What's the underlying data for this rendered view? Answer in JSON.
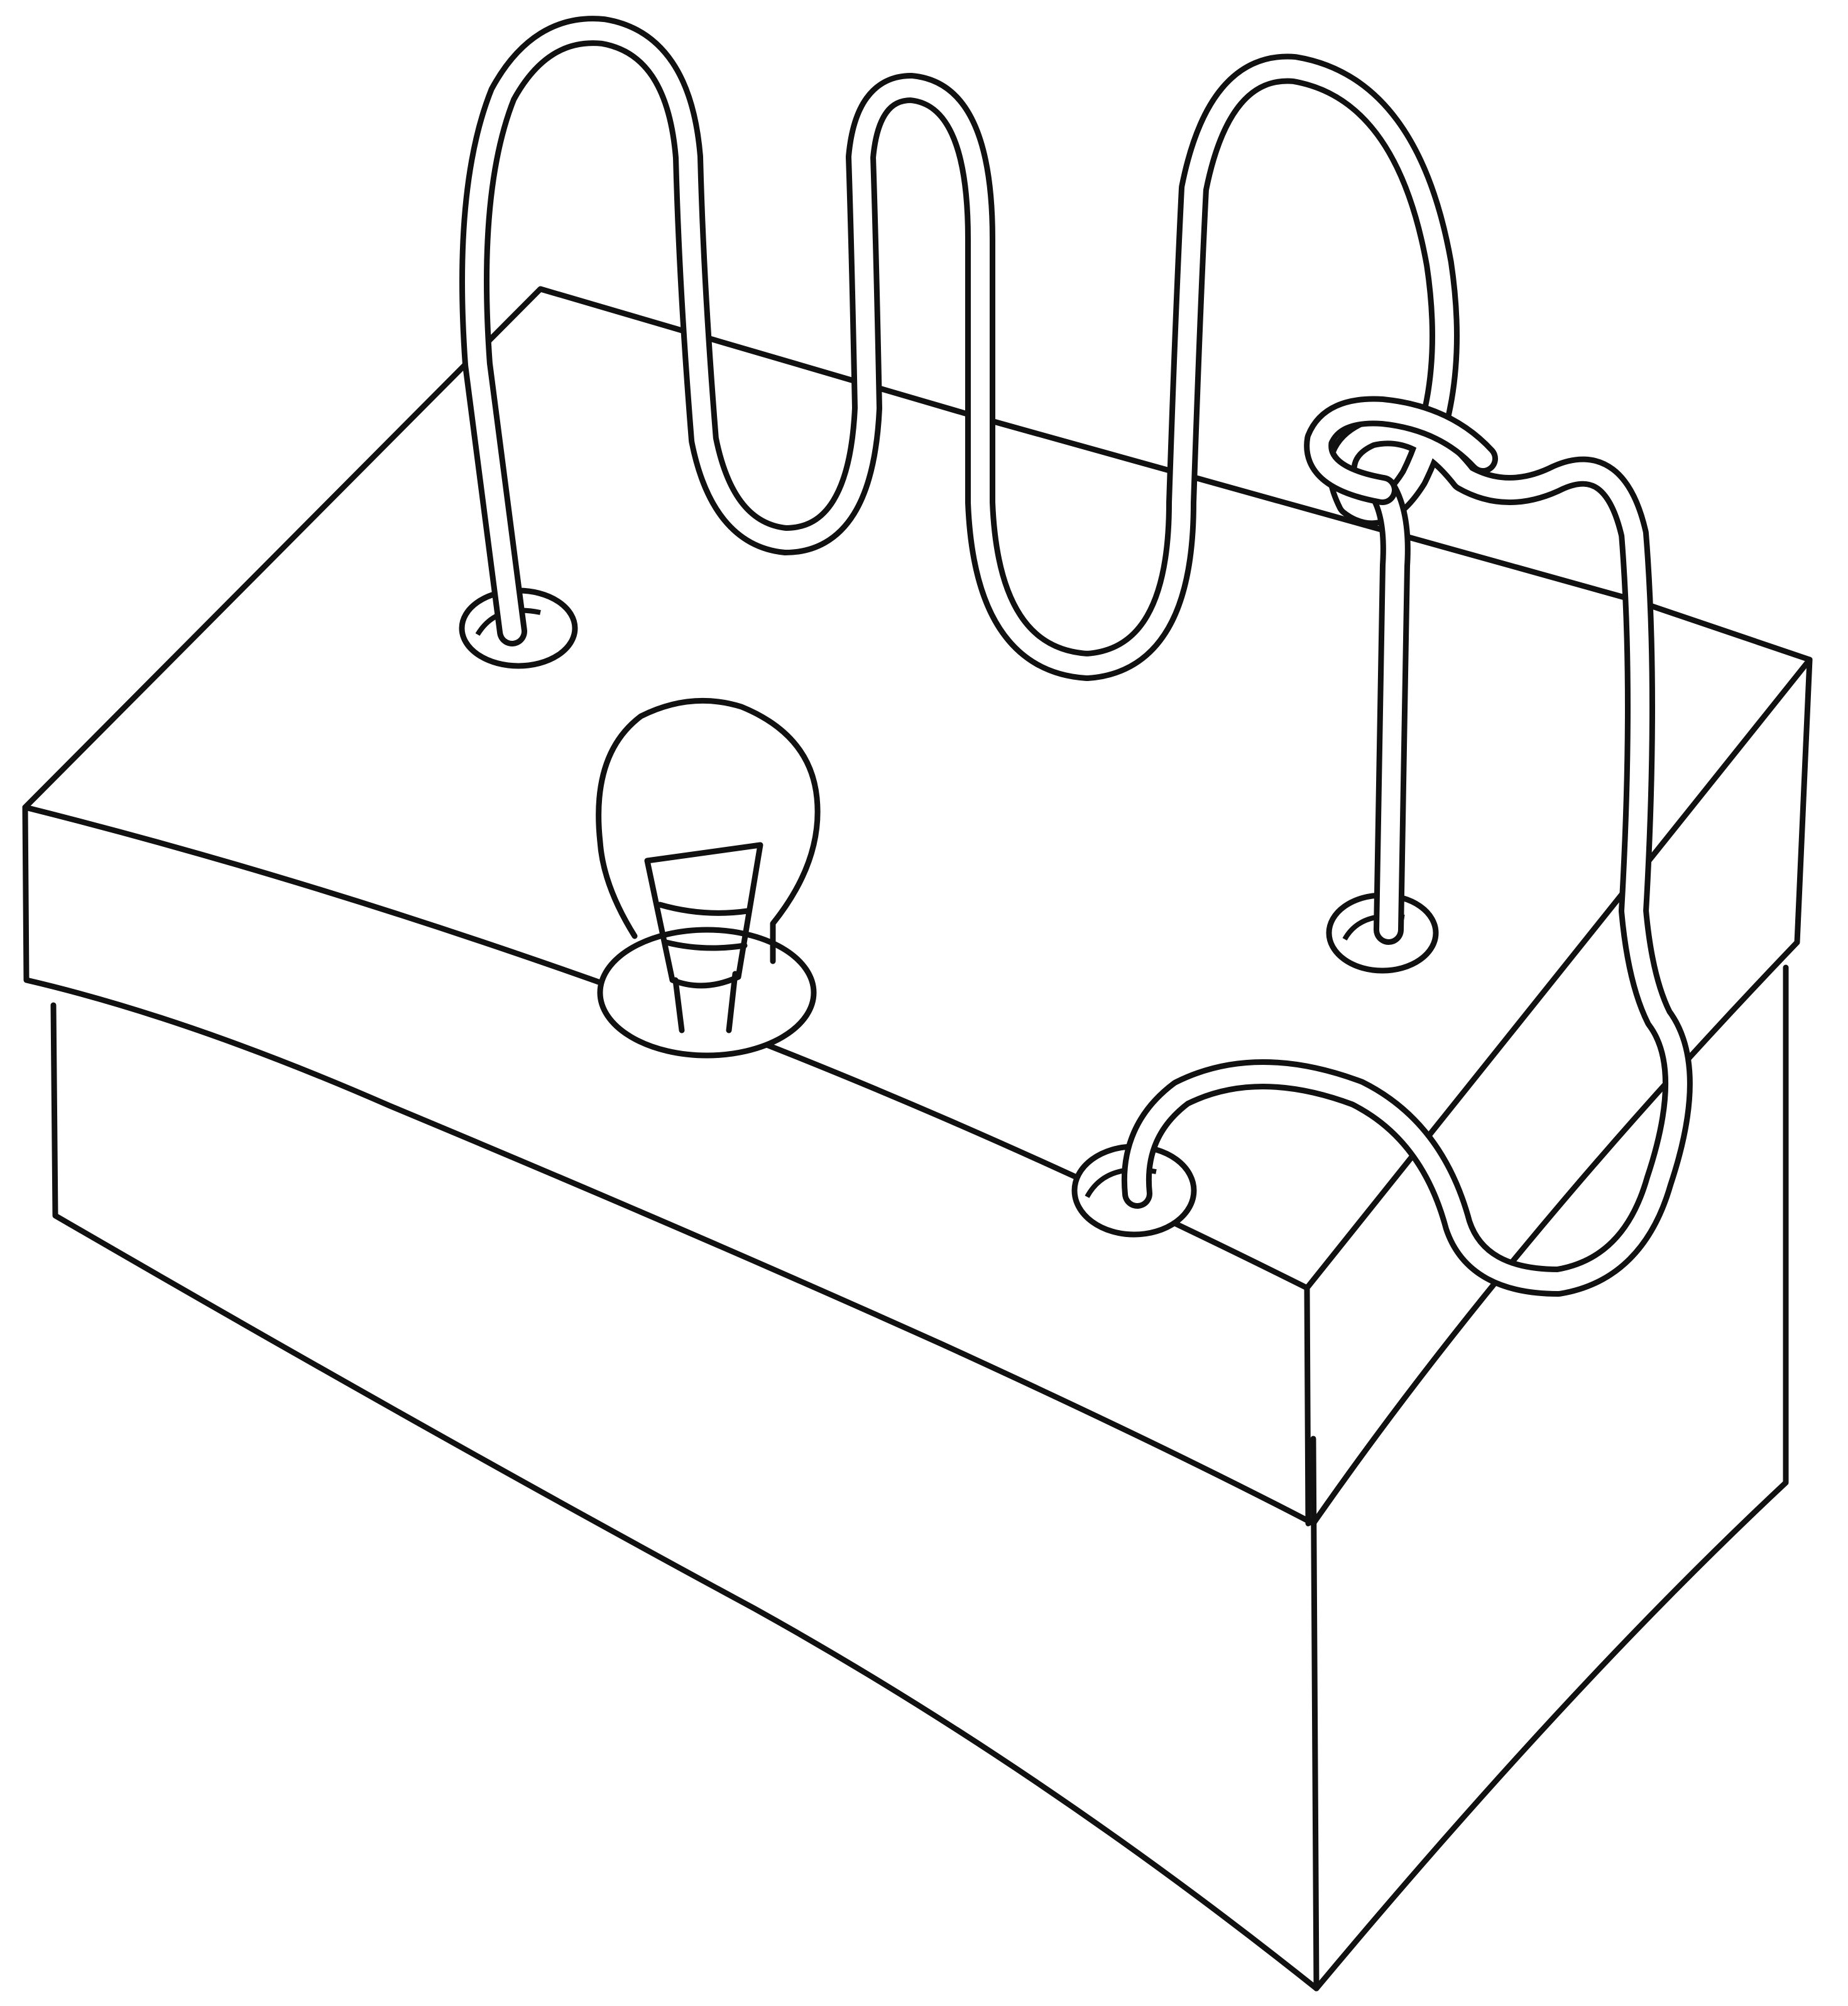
{
  "illustration": {
    "subject": "shoebox-buzz-wire-game",
    "colors": {
      "ink": "#111111",
      "paper": "#ffffff"
    }
  }
}
